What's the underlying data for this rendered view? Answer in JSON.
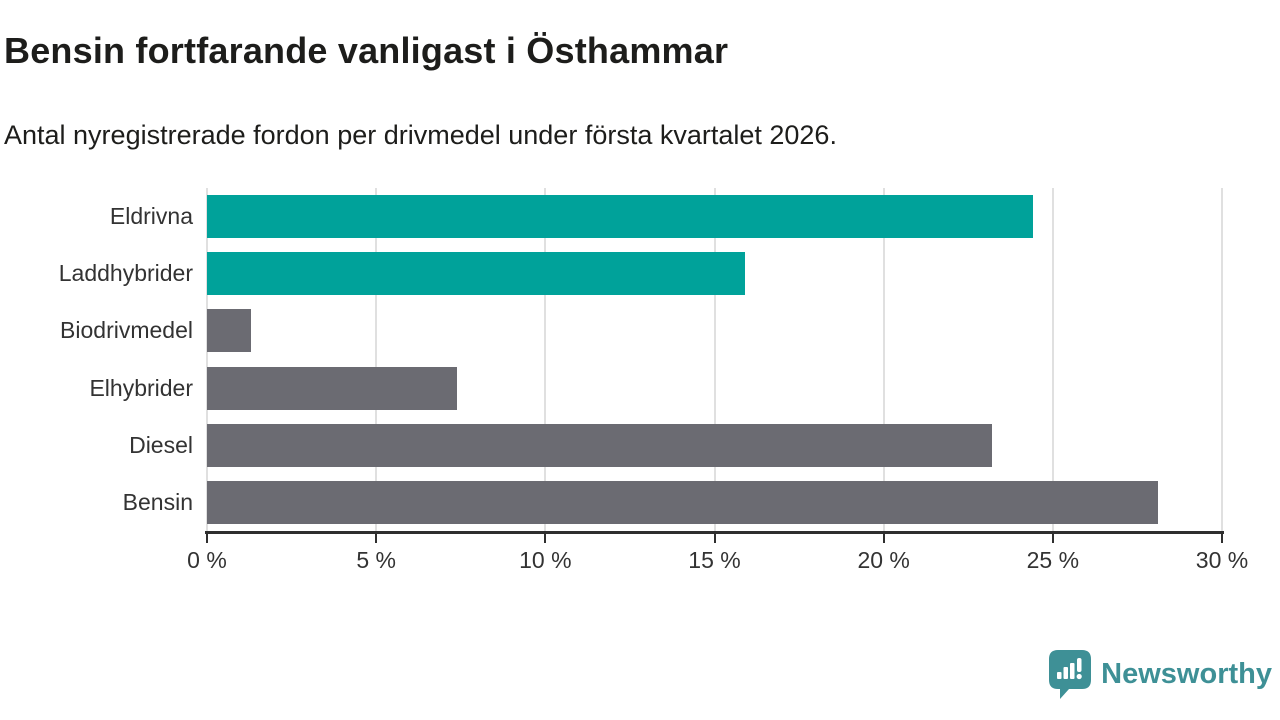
{
  "header": {
    "title": "Bensin fortfarande vanligast i Östhammar",
    "subtitle": "Antal nyregistrerade fordon per drivmedel under första kvartalet 2026."
  },
  "chart_data": {
    "type": "bar",
    "orientation": "horizontal",
    "title": "Bensin fortfarande vanligast i Östhammar",
    "subtitle": "Antal nyregistrerade fordon per drivmedel under första kvartalet 2026.",
    "categories": [
      "Eldrivna",
      "Laddhybrider",
      "Biodrivmedel",
      "Elhybrider",
      "Diesel",
      "Bensin"
    ],
    "values": [
      24.4,
      15.9,
      1.3,
      7.4,
      23.2,
      28.1
    ],
    "unit": "%",
    "xlabel": "",
    "ylabel": "",
    "xlim": [
      0,
      30
    ],
    "x_tick_values": [
      0,
      5,
      10,
      15,
      20,
      25,
      30
    ],
    "x_tick_labels": [
      "0 %",
      "5 %",
      "10 %",
      "15 %",
      "20 %",
      "25 %",
      "30 %"
    ],
    "grid": true,
    "legend": "none",
    "bar_colors": [
      "#00a29a",
      "#00a29a",
      "#6b6b72",
      "#6b6b72",
      "#6b6b72",
      "#6b6b72"
    ]
  },
  "colors": {
    "accent_teal": "#00a29a",
    "bar_gray": "#6b6b72",
    "gridline": "#e0e0e0",
    "axis": "#2f2f2f",
    "text_dark": "#1d1d1b",
    "text_label": "#333333",
    "logo_teal": "#3e9096"
  },
  "branding": {
    "logo_text": "Newsworthy"
  }
}
